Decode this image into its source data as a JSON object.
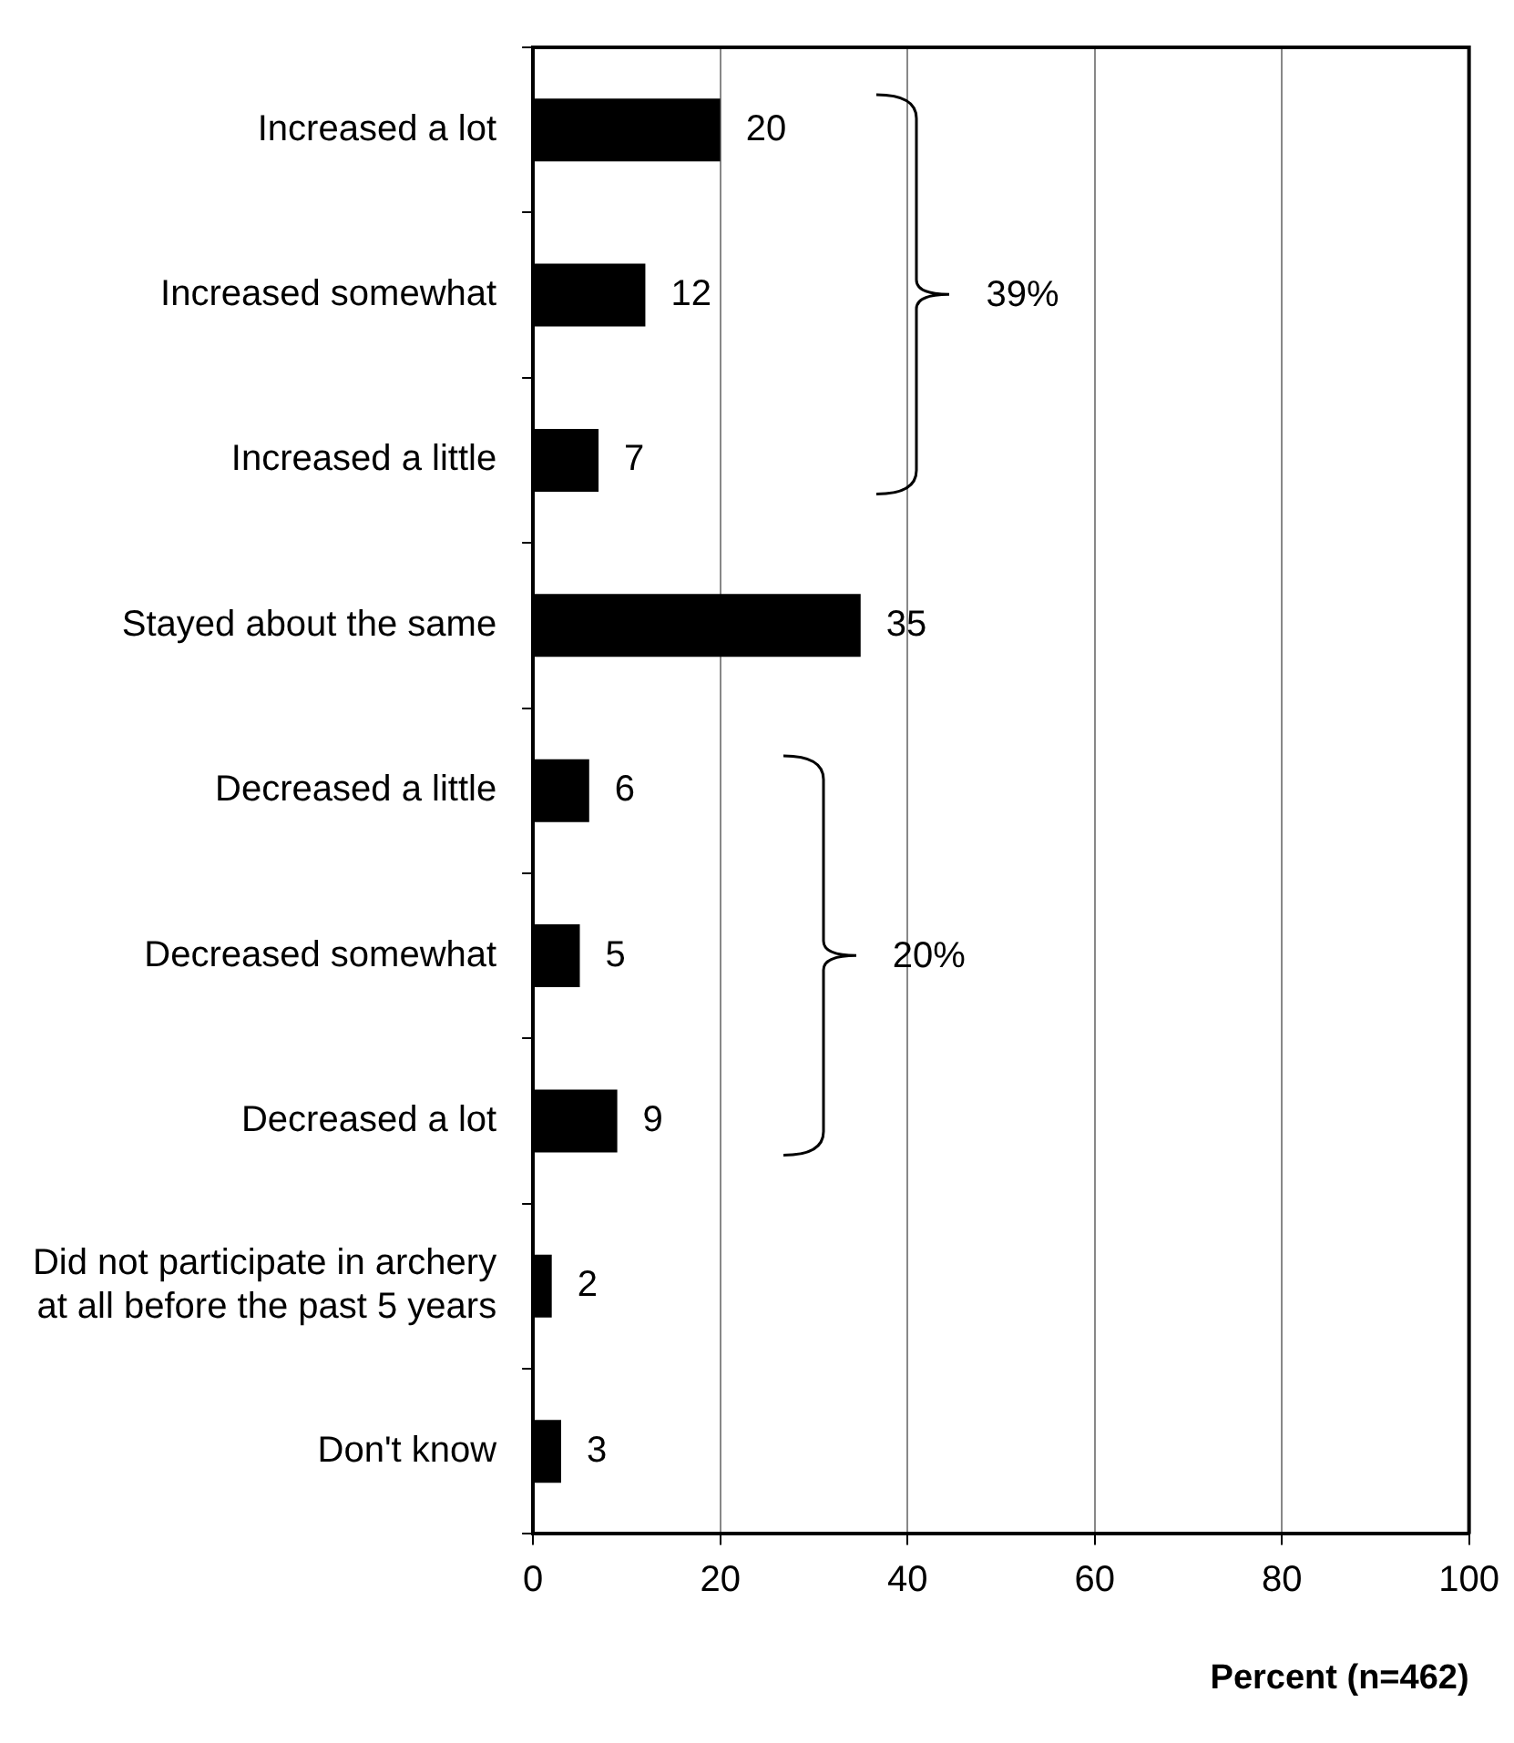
{
  "chart_data": {
    "type": "bar",
    "orientation": "horizontal",
    "categories": [
      "Increased a lot",
      "Increased somewhat",
      "Increased a little",
      "Stayed about the same",
      "Decreased a little",
      "Decreased somewhat",
      "Decreased a lot",
      "Did not participate in archery at all before the past 5 years",
      "Don't know"
    ],
    "values": [
      20,
      12,
      7,
      35,
      6,
      5,
      9,
      2,
      3
    ],
    "color": "#000000",
    "xlim": [
      0,
      100
    ],
    "xticks": [
      0,
      20,
      40,
      60,
      80,
      100
    ],
    "xlabel": "Percent (n=462)",
    "grid": "x",
    "data_labels": true,
    "annotations": [
      "39%",
      "20%"
    ]
  }
}
